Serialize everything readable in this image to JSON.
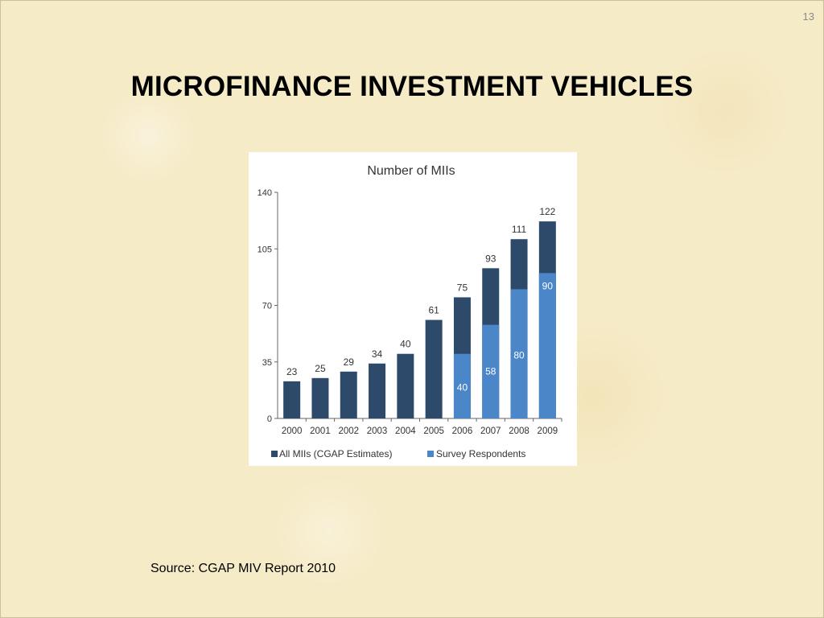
{
  "slide": {
    "title": "MICROFINANCE INVESTMENT VEHICLES",
    "page_number": "13",
    "source": "Source: CGAP MIV Report 2010"
  },
  "colors": {
    "all_miis": "#2e4a6b",
    "survey": "#4a86c8"
  },
  "chart_data": {
    "type": "bar",
    "title": "Number of MIIs",
    "categories": [
      "2000",
      "2001",
      "2002",
      "2003",
      "2004",
      "2005",
      "2006",
      "2007",
      "2008",
      "2009"
    ],
    "series": [
      {
        "name": "All MIIs (CGAP Estimates)",
        "values": [
          23,
          25,
          29,
          34,
          40,
          61,
          75,
          93,
          111,
          122
        ]
      },
      {
        "name": "Survey Respondents",
        "values": [
          null,
          null,
          null,
          null,
          null,
          null,
          40,
          58,
          80,
          90
        ]
      }
    ],
    "yticks": [
      0,
      35,
      70,
      105,
      140
    ],
    "ylim": [
      0,
      140
    ],
    "xlabel": "",
    "ylabel": "",
    "legend": "bottom",
    "grid": false
  }
}
